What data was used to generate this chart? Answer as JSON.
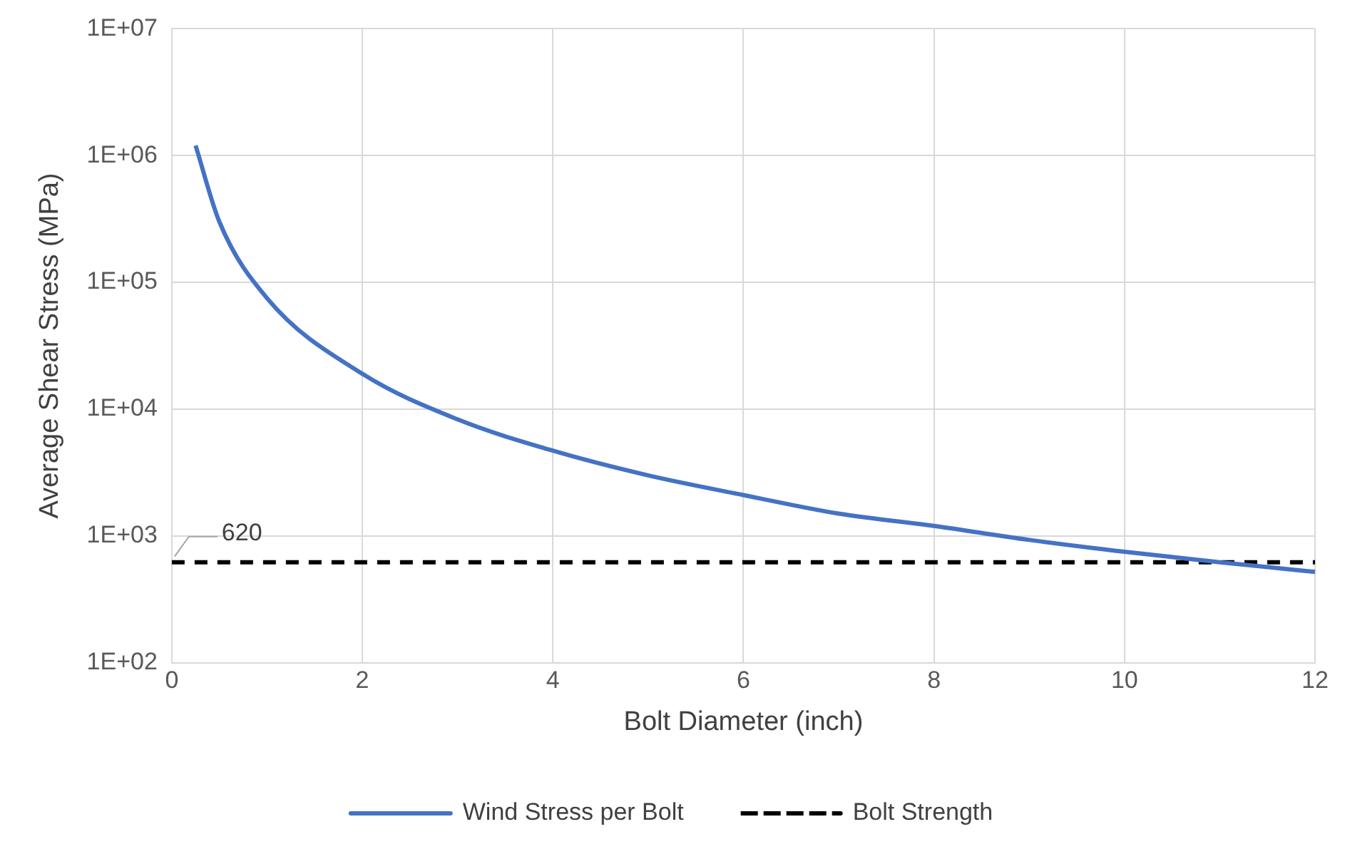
{
  "chart_data": {
    "type": "line",
    "xlabel": "Bolt Diameter (inch)",
    "ylabel": "Average Shear Stress (MPa)",
    "series": [
      {
        "name": "Wind Stress per Bolt",
        "color": "#4472c4",
        "x": [
          0.25,
          0.5,
          1,
          2,
          3,
          4,
          5,
          6,
          7,
          8,
          9,
          10,
          11,
          12
        ],
        "values": [
          1200000,
          300000,
          75000,
          19000,
          8300,
          4700,
          3000,
          2100,
          1500,
          1200,
          930,
          750,
          620,
          520
        ]
      },
      {
        "name": "Bolt Strength",
        "color": "#000000",
        "line_style": "dashed",
        "x": [
          0,
          12
        ],
        "values": [
          620,
          620
        ]
      }
    ],
    "annotations": [
      {
        "text": "620",
        "x": 0,
        "y": 620
      }
    ],
    "log": "y",
    "xlim": [
      0,
      12
    ],
    "xticks": [
      0,
      2,
      4,
      6,
      8,
      10,
      12
    ],
    "ylim": [
      100,
      10000000
    ],
    "yticks": [
      {
        "value": 100,
        "label": "1E+02"
      },
      {
        "value": 1000,
        "label": "1E+03"
      },
      {
        "value": 10000,
        "label": "1E+04"
      },
      {
        "value": 100000,
        "label": "1E+05"
      },
      {
        "value": 1000000,
        "label": "1E+06"
      },
      {
        "value": 10000000,
        "label": "1E+07"
      }
    ],
    "grid": true,
    "legend": "bottom",
    "marker": "none"
  }
}
